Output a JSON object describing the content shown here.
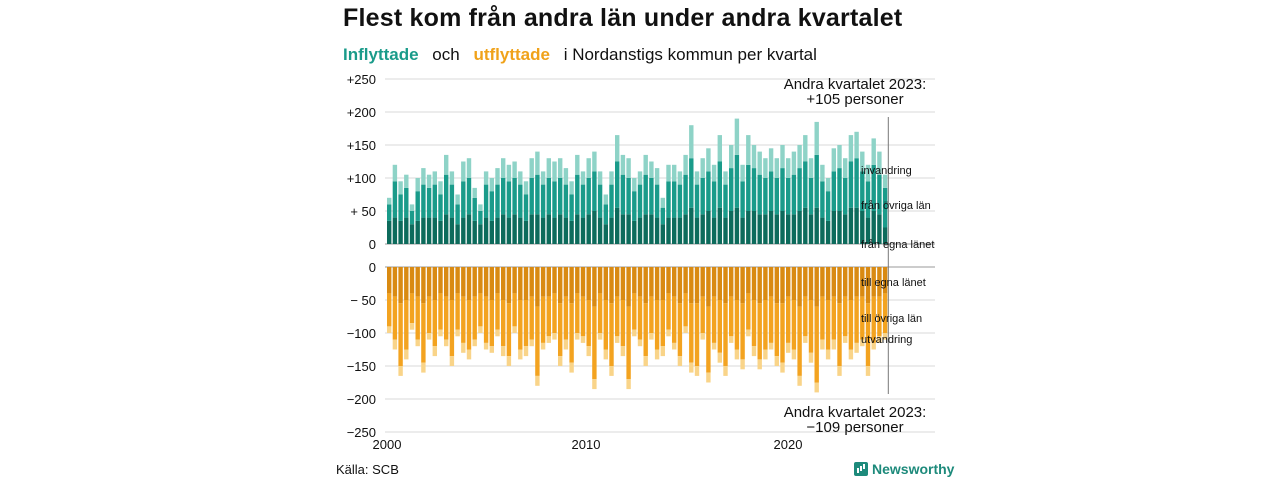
{
  "title": "Flest kom från andra län under andra kvartalet",
  "subtitle": {
    "in_word": "Inflyttade",
    "and_word": "och",
    "out_word": "utflyttade",
    "rest": "i Nordanstigs  kommun  per  kvartal"
  },
  "source": "Källa: SCB",
  "brand": "Newsworthy",
  "colors": {
    "in_dark": "#0d6b5c",
    "in_mid": "#1a9b8a",
    "in_light": "#8ed3c7",
    "out_dark": "#d98a12",
    "out_mid": "#f3a320",
    "out_light": "#f9d489",
    "grid": "#d9d9d9"
  },
  "chart_data": {
    "type": "bar",
    "stacked": true,
    "x_start": "2000 Q1",
    "x_ticks": [
      "2000",
      "2010",
      "2020"
    ],
    "y_ticks": [
      "+250",
      "+200",
      "+150",
      "+100",
      "+ 50",
      "0",
      "0",
      "− 50",
      "−100",
      "−150",
      "−200",
      "−250"
    ],
    "ylim": [
      -250,
      250
    ],
    "series_labels": {
      "in_own": "från egna länet",
      "in_other": "från övriga län",
      "in_immig": "invandring",
      "out_own": "till egna länet",
      "out_other": "till övriga län",
      "out_emig": "utvandring"
    },
    "annotation_top": [
      "Andra kvartalet 2023:",
      "+105 personer"
    ],
    "annotation_bottom": [
      "Andra kvartalet 2023:",
      "−109 personer"
    ],
    "in_totals": [
      70,
      120,
      95,
      105,
      60,
      100,
      115,
      105,
      110,
      95,
      135,
      110,
      75,
      125,
      130,
      85,
      60,
      110,
      100,
      115,
      130,
      120,
      125,
      110,
      95,
      130,
      140,
      110,
      130,
      125,
      130,
      115,
      95,
      135,
      110,
      130,
      140,
      110,
      75,
      110,
      165,
      135,
      130,
      100,
      110,
      135,
      125,
      115,
      70,
      120,
      120,
      110,
      135,
      180,
      110,
      130,
      145,
      120,
      165,
      110,
      150,
      190,
      120,
      165,
      150,
      140,
      130,
      145,
      130,
      150,
      130,
      140,
      150,
      165,
      130,
      185,
      120,
      100,
      145,
      150,
      130,
      165,
      170,
      140,
      120,
      160,
      140,
      105
    ],
    "in_own": [
      35,
      40,
      35,
      40,
      30,
      35,
      40,
      40,
      40,
      35,
      45,
      40,
      30,
      40,
      45,
      35,
      30,
      40,
      35,
      40,
      45,
      40,
      45,
      40,
      35,
      45,
      45,
      40,
      45,
      40,
      45,
      40,
      35,
      45,
      40,
      45,
      50,
      40,
      30,
      40,
      55,
      45,
      45,
      35,
      40,
      45,
      45,
      40,
      30,
      40,
      40,
      40,
      45,
      55,
      40,
      45,
      50,
      40,
      55,
      40,
      50,
      55,
      40,
      50,
      50,
      45,
      45,
      50,
      45,
      50,
      45,
      45,
      50,
      55,
      45,
      55,
      40,
      35,
      50,
      50,
      45,
      55,
      55,
      50,
      40,
      50,
      45,
      25
    ],
    "in_other": [
      25,
      55,
      40,
      45,
      20,
      45,
      50,
      45,
      50,
      40,
      60,
      50,
      30,
      55,
      55,
      35,
      20,
      50,
      45,
      50,
      55,
      55,
      55,
      50,
      40,
      55,
      60,
      50,
      55,
      55,
      55,
      50,
      40,
      60,
      50,
      55,
      60,
      50,
      30,
      50,
      70,
      60,
      55,
      45,
      50,
      60,
      55,
      50,
      25,
      55,
      55,
      50,
      60,
      75,
      50,
      55,
      60,
      55,
      70,
      50,
      65,
      80,
      55,
      70,
      65,
      60,
      55,
      60,
      55,
      65,
      55,
      60,
      65,
      70,
      55,
      80,
      55,
      45,
      60,
      65,
      55,
      70,
      75,
      60,
      55,
      70,
      60,
      60
    ],
    "out_totals": [
      100,
      125,
      165,
      140,
      95,
      120,
      160,
      110,
      135,
      105,
      120,
      150,
      105,
      130,
      140,
      120,
      100,
      125,
      130,
      105,
      135,
      150,
      100,
      140,
      135,
      120,
      180,
      125,
      115,
      110,
      150,
      125,
      160,
      110,
      115,
      135,
      185,
      110,
      140,
      165,
      115,
      135,
      185,
      105,
      120,
      150,
      110,
      140,
      135,
      105,
      125,
      150,
      100,
      160,
      165,
      110,
      175,
      125,
      145,
      165,
      115,
      140,
      155,
      105,
      135,
      155,
      140,
      125,
      150,
      160,
      130,
      140,
      180,
      115,
      145,
      190,
      125,
      140,
      125,
      165,
      115,
      140,
      130,
      120,
      165,
      125,
      115,
      110
    ],
    "out_own": [
      40,
      45,
      55,
      50,
      40,
      45,
      55,
      45,
      50,
      40,
      45,
      50,
      40,
      45,
      50,
      45,
      40,
      45,
      50,
      40,
      50,
      55,
      40,
      50,
      50,
      45,
      60,
      45,
      45,
      40,
      55,
      45,
      55,
      40,
      45,
      50,
      60,
      40,
      50,
      55,
      45,
      50,
      60,
      40,
      45,
      55,
      45,
      50,
      50,
      40,
      45,
      55,
      40,
      55,
      55,
      45,
      60,
      45,
      50,
      55,
      45,
      50,
      55,
      40,
      50,
      55,
      50,
      45,
      55,
      55,
      45,
      50,
      60,
      45,
      50,
      60,
      45,
      50,
      45,
      55,
      45,
      50,
      45,
      45,
      55,
      45,
      45,
      40
    ],
    "out_other": [
      50,
      65,
      95,
      75,
      45,
      65,
      90,
      55,
      70,
      55,
      65,
      85,
      55,
      70,
      75,
      65,
      50,
      70,
      70,
      55,
      70,
      80,
      50,
      75,
      70,
      65,
      105,
      70,
      60,
      60,
      80,
      65,
      90,
      60,
      60,
      70,
      110,
      60,
      75,
      95,
      60,
      70,
      110,
      55,
      65,
      80,
      55,
      75,
      70,
      55,
      70,
      80,
      50,
      90,
      95,
      55,
      100,
      70,
      80,
      95,
      60,
      75,
      85,
      55,
      70,
      85,
      75,
      70,
      80,
      90,
      70,
      75,
      105,
      60,
      80,
      115,
      65,
      75,
      65,
      95,
      60,
      75,
      70,
      65,
      95,
      70,
      60,
      60
    ]
  }
}
